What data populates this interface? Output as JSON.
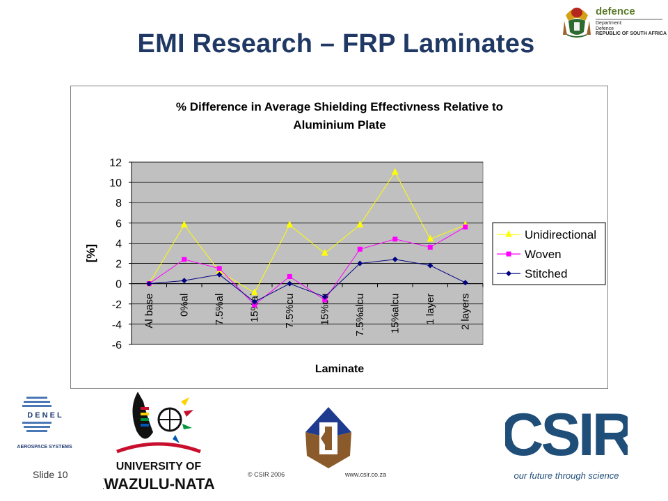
{
  "slide": {
    "title": "EMI Research – FRP Laminates",
    "slide_number": "Slide 10",
    "copyright": "© CSIR 2006",
    "website": "www.csir.co.za"
  },
  "logos": {
    "defence_word": "defence",
    "defence_line1": "Department:",
    "defence_line2": "Defence",
    "defence_line3": "REPUBLIC OF SOUTH AFRICA",
    "denel_word": "D E N E L",
    "denel_sub": "AEROSPACE SYSTEMS",
    "ukzn_line1": "UNIVERSITY OF",
    "ukzn_line2": "KWAZULU-NATAL",
    "csir_word": "CSIR",
    "csir_tagline": "our future through science"
  },
  "colors": {
    "title": "#1f3864",
    "plot_background": "#c0c0c0",
    "unidirectional": "#ffff00",
    "woven": "#ff00ff",
    "stitched": "#000080",
    "csir_blue": "#1f4e79"
  },
  "chart_data": {
    "type": "line",
    "title_line1": "% Difference in Average Shielding Effectivness Relative to",
    "title_line2": "Aluminium Plate",
    "xlabel": "Laminate",
    "ylabel": "[%]",
    "ylim": [
      -6,
      12
    ],
    "yticks": [
      12,
      10,
      8,
      6,
      4,
      2,
      0,
      -2,
      -4,
      -6
    ],
    "grid": true,
    "legend_position": "right",
    "categories": [
      "Al base",
      "0%al",
      "7.5%al",
      "15%al",
      "7.5%cu",
      "15%cu",
      "7.5%alcu",
      "15%alcu",
      "1 layer",
      "2 layers"
    ],
    "series": [
      {
        "name": "Unidirectional",
        "marker": "triangle",
        "color": "#ffff00",
        "values": [
          0,
          5.8,
          1.2,
          -0.9,
          5.8,
          3.0,
          5.8,
          11.0,
          4.4,
          5.8
        ]
      },
      {
        "name": "Woven",
        "marker": "square",
        "color": "#ff00ff",
        "values": [
          0,
          2.4,
          1.5,
          -2.1,
          0.7,
          -1.6,
          3.4,
          4.4,
          3.6,
          5.6
        ]
      },
      {
        "name": "Stitched",
        "marker": "diamond",
        "color": "#000080",
        "values": [
          0,
          0.3,
          0.9,
          -1.8,
          0,
          -1.3,
          2.0,
          2.4,
          1.8,
          0.1
        ]
      }
    ]
  }
}
